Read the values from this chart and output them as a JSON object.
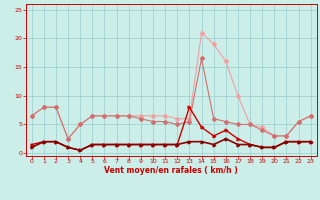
{
  "x": [
    0,
    1,
    2,
    3,
    4,
    5,
    6,
    7,
    8,
    9,
    10,
    11,
    12,
    13,
    14,
    15,
    16,
    17,
    18,
    19,
    20,
    21,
    22,
    23
  ],
  "series_light_pink": [
    6.5,
    8.0,
    8.0,
    2.5,
    5.0,
    6.5,
    6.5,
    6.5,
    6.5,
    6.5,
    6.5,
    6.5,
    6.0,
    6.0,
    21.0,
    19.0,
    16.0,
    10.0,
    5.0,
    4.5,
    3.0,
    3.0,
    5.5,
    6.5
  ],
  "series_medium_pink": [
    6.5,
    8.0,
    8.0,
    2.5,
    5.0,
    6.5,
    6.5,
    6.5,
    6.5,
    6.0,
    5.5,
    5.5,
    5.0,
    5.5,
    16.5,
    6.0,
    5.5,
    5.0,
    5.0,
    4.0,
    3.0,
    3.0,
    5.5,
    6.5
  ],
  "series_dark_red1": [
    1.5,
    2.0,
    2.0,
    1.0,
    0.5,
    1.5,
    1.5,
    1.5,
    1.5,
    1.5,
    1.5,
    1.5,
    1.5,
    8.0,
    4.5,
    3.0,
    4.0,
    2.5,
    1.5,
    1.0,
    1.0,
    2.0,
    2.0,
    2.0
  ],
  "series_dark_red2": [
    1.0,
    2.0,
    2.0,
    1.0,
    0.5,
    1.5,
    1.5,
    1.5,
    1.5,
    1.5,
    1.5,
    1.5,
    1.5,
    2.0,
    2.0,
    1.5,
    2.5,
    1.5,
    1.5,
    1.0,
    1.0,
    2.0,
    2.0,
    2.0
  ],
  "color_light_pink": "#f0a0a0",
  "color_medium_pink": "#d07070",
  "color_dark_red1": "#cc0000",
  "color_dark_red2": "#880000",
  "xlabel": "Vent moyen/en rafales ( km/h )",
  "xticks": [
    0,
    1,
    2,
    3,
    4,
    5,
    6,
    7,
    8,
    9,
    10,
    11,
    12,
    13,
    14,
    15,
    16,
    17,
    18,
    19,
    20,
    21,
    22,
    23
  ],
  "yticks": [
    0,
    5,
    10,
    15,
    20,
    25
  ],
  "ylim": [
    -0.5,
    26
  ],
  "xlim": [
    -0.5,
    23.5
  ],
  "bg_color": "#cceee8",
  "grid_color": "#99cccc",
  "tick_color": "#cc0000",
  "label_color": "#cc0000",
  "spine_color": "#cc0000"
}
